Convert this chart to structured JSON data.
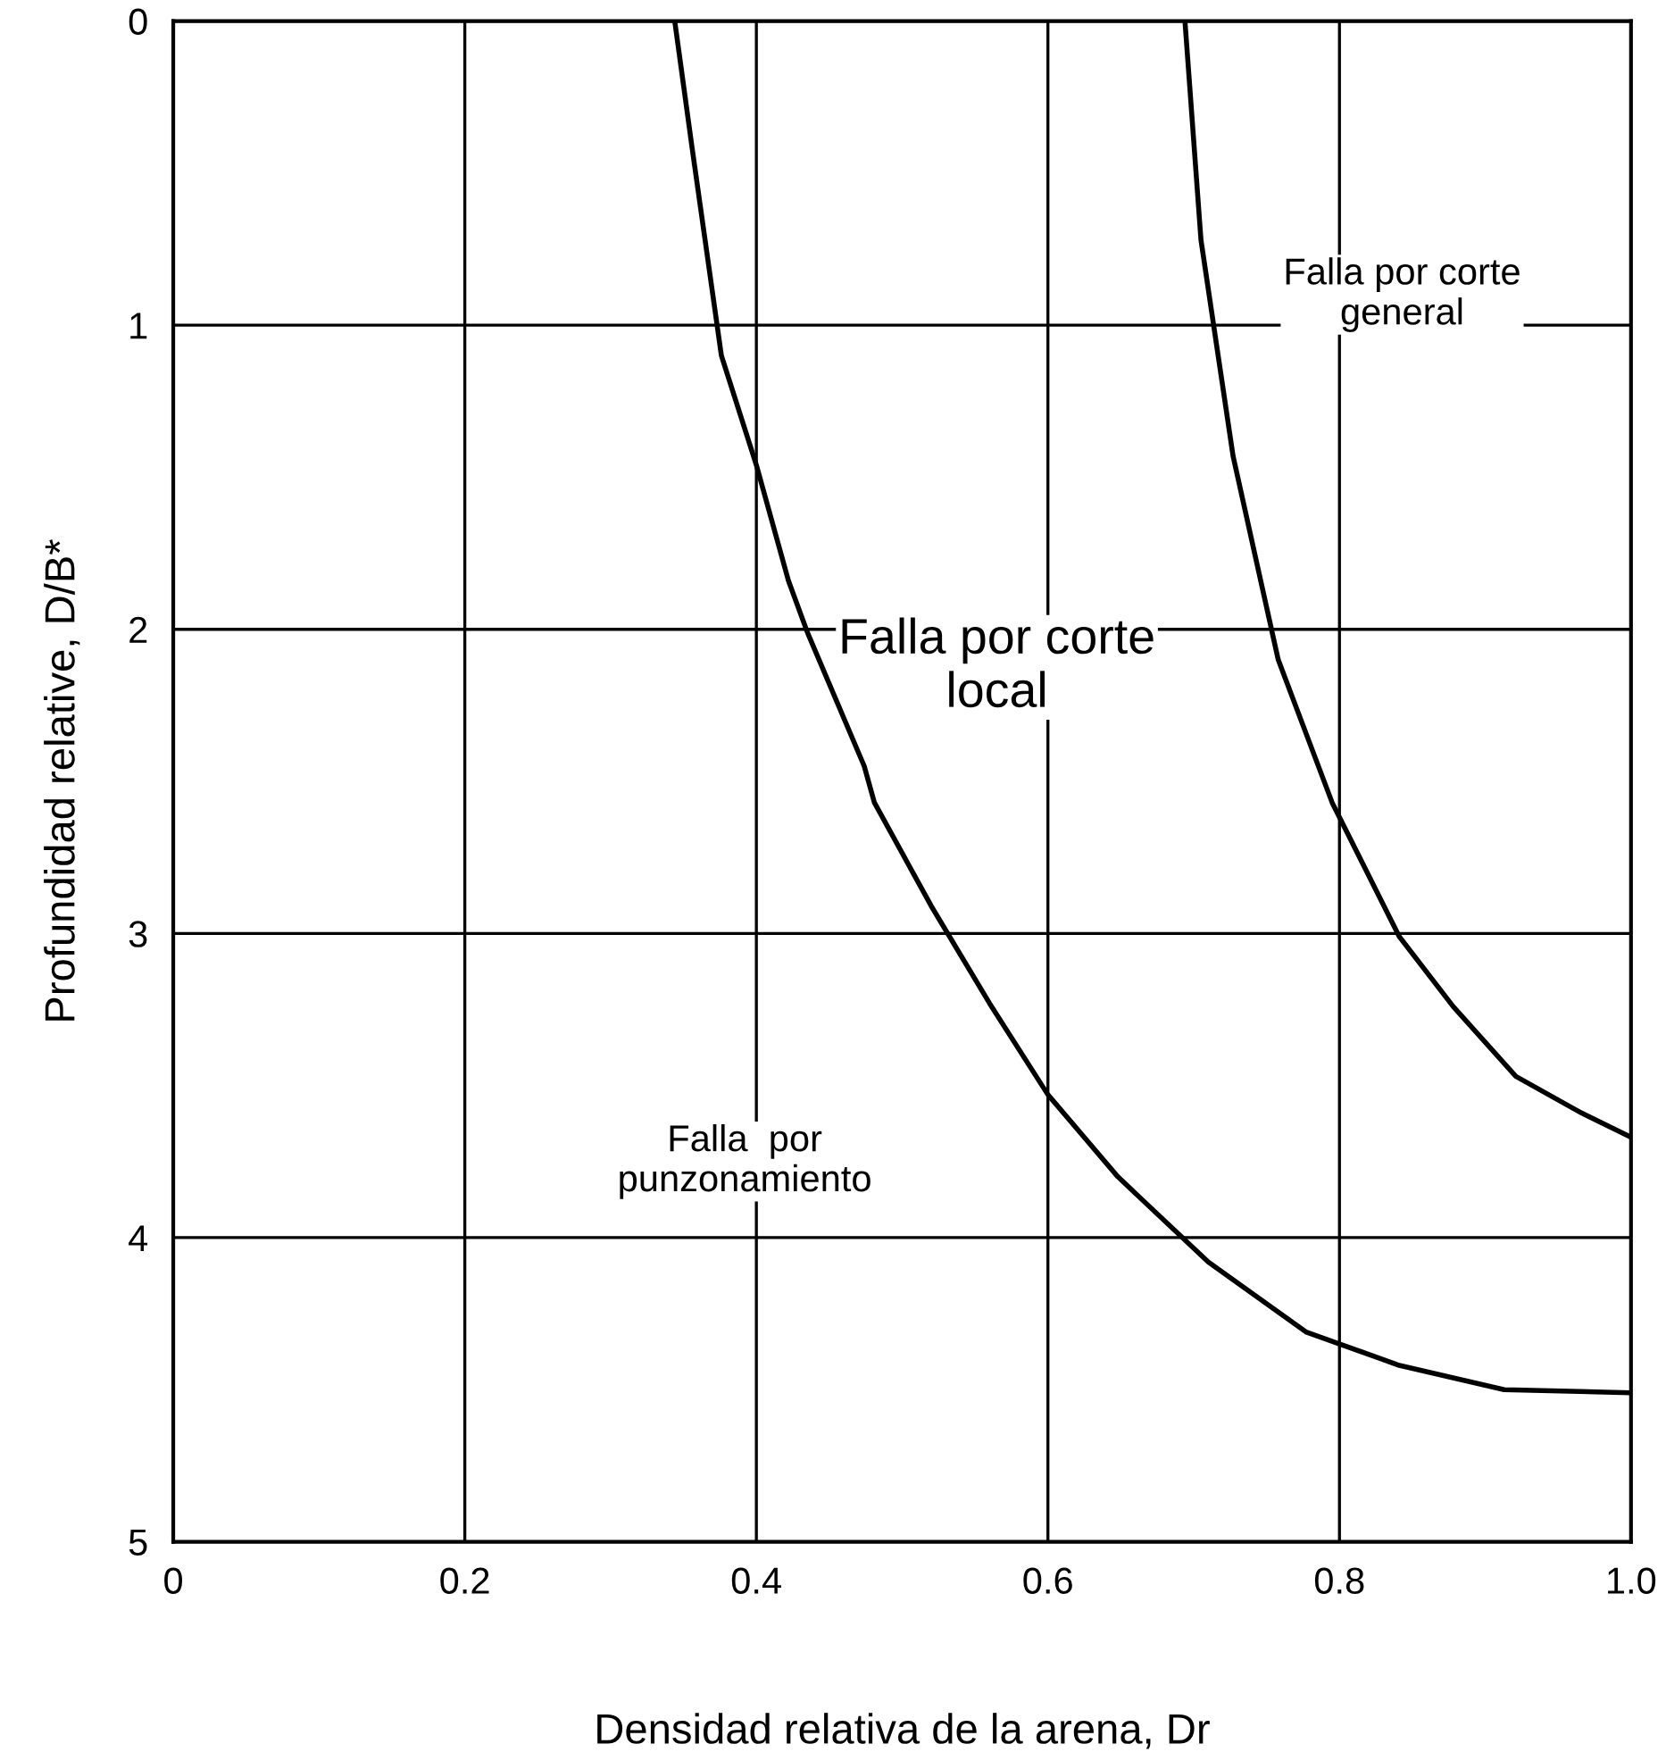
{
  "chart_data": {
    "type": "line",
    "xlabel": "Densidad relativa de la arena, Dr",
    "ylabel": "Profundidad relative, D/B*",
    "xlim": [
      0,
      1.0
    ],
    "xticks": [
      0,
      0.2,
      0.4,
      0.6,
      0.8,
      {
        "value": 1.0,
        "label": "1.0"
      }
    ],
    "ylim": [
      5,
      0
    ],
    "yticks": [
      0,
      1,
      2,
      3,
      4,
      5
    ],
    "grid": true,
    "marker": "none",
    "line_style": "solid",
    "series": [
      {
        "color": "#000000",
        "x": [
          0.344,
          0.356,
          0.376,
          0.4,
          0.422,
          0.435,
          0.474,
          0.481,
          0.52,
          0.56,
          0.6,
          0.648,
          0.71,
          0.777,
          0.841,
          0.913,
          1.0
        ],
        "values": [
          0,
          0.42,
          1.1,
          1.46,
          1.84,
          2.01,
          2.45,
          2.57,
          2.91,
          3.23,
          3.53,
          3.8,
          4.08,
          4.31,
          4.42,
          4.5,
          4.51
        ]
      },
      {
        "color": "#000000",
        "x": [
          0.694,
          0.705,
          0.727,
          0.758,
          0.795,
          0.841,
          0.878,
          0.921,
          0.966,
          1.0
        ],
        "values": [
          0,
          0.72,
          1.43,
          2.1,
          2.57,
          3.01,
          3.24,
          3.47,
          3.59,
          3.67
        ]
      }
    ],
    "annotations": [
      "Falla por corte\ngeneral",
      "Falla por corte\nlocal",
      "Falla  por\npunzonamiento"
    ]
  }
}
